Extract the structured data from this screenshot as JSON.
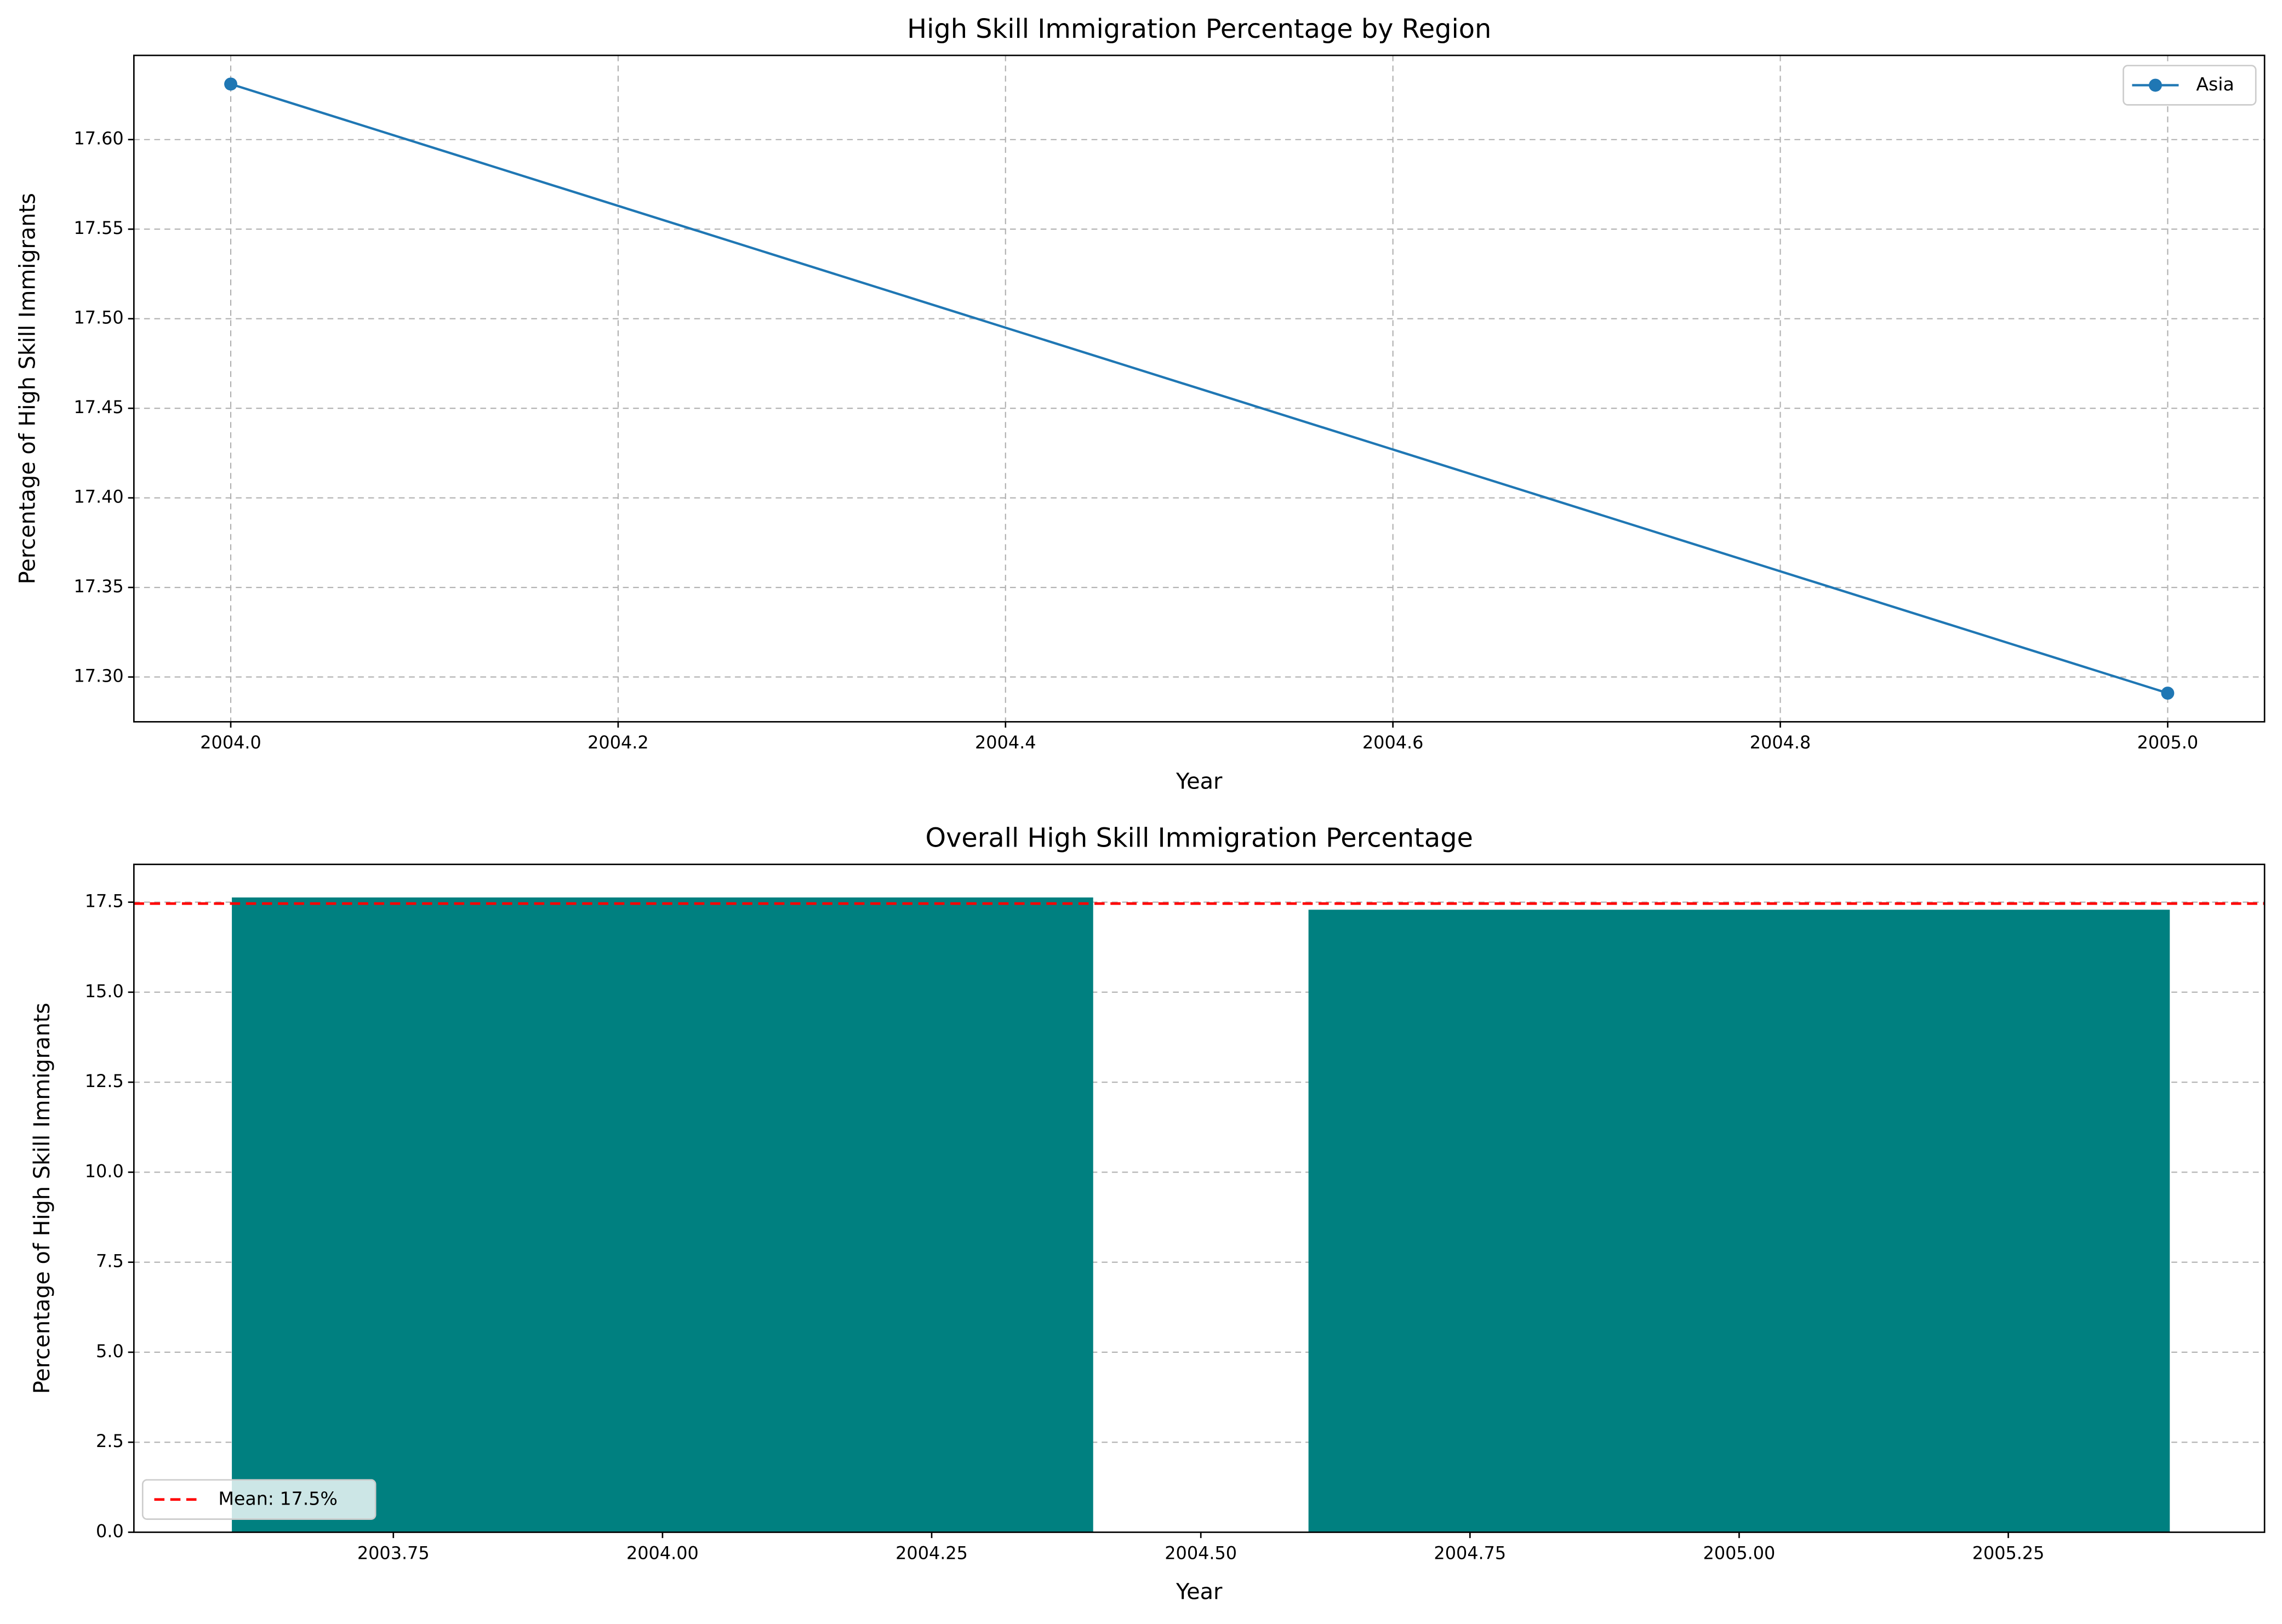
{
  "chart_data": [
    {
      "type": "line",
      "title": "High Skill Immigration Percentage by Region",
      "x_label": "Year",
      "y_label": "Percentage of High Skill Immigrants",
      "x": [
        2004,
        2005
      ],
      "series": [
        {
          "name": "Asia",
          "color": "#1f77b4",
          "values": [
            17.631,
            17.291
          ]
        }
      ],
      "xlim": [
        2003.95,
        2005.05
      ],
      "xticks": [
        {
          "value": 2004,
          "label": "2004.0"
        },
        2004.2,
        2004.4,
        2004.6,
        2004.8,
        {
          "value": 2005,
          "label": "2005.0"
        }
      ],
      "ylim": [
        17.275,
        17.647
      ],
      "yticks": [
        {
          "value": 17.3,
          "label": "17.30"
        },
        17.35,
        {
          "value": 17.4,
          "label": "17.40"
        },
        17.45,
        {
          "value": 17.5,
          "label": "17.50"
        },
        17.55,
        {
          "value": 17.6,
          "label": "17.60"
        }
      ],
      "grid": "both",
      "legend": "upper right"
    },
    {
      "type": "bar",
      "title": "Overall High Skill Immigration Percentage",
      "x_label": "Year",
      "y_label": "Percentage of High Skill Immigrants",
      "x": [
        2004,
        2005
      ],
      "values": [
        17.631,
        17.291
      ],
      "color": "#008080",
      "mean_line": {
        "value": 17.461,
        "label": "Mean: 17.5%",
        "color": "#ff0000"
      },
      "xlim": [
        2003.509,
        2005.488
      ],
      "xticks": [
        2003.75,
        {
          "value": 2004,
          "label": "2004.00"
        },
        2004.25,
        {
          "value": 2004.5,
          "label": "2004.50"
        },
        2004.75,
        {
          "value": 2005,
          "label": "2005.00"
        },
        2005.25
      ],
      "ylim": [
        0,
        18.55
      ],
      "yticks": [
        {
          "value": 0,
          "label": "0.0"
        },
        2.5,
        {
          "value": 5,
          "label": "5.0"
        },
        7.5,
        {
          "value": 10,
          "label": "10.0"
        },
        12.5,
        {
          "value": 15,
          "label": "15.0"
        },
        17.5
      ],
      "grid": "y",
      "legend": "lower left"
    }
  ]
}
